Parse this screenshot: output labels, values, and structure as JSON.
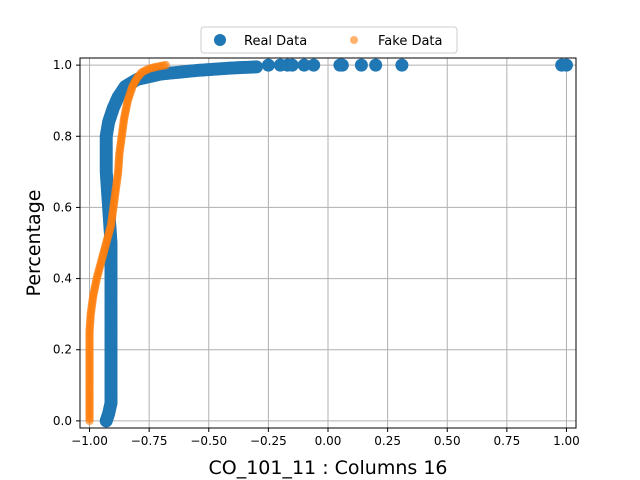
{
  "chart_data": {
    "type": "scatter",
    "title": "",
    "xlabel": "CO_101_11 : Columns 16",
    "ylabel": "Percentage",
    "xlim": [
      -1.04,
      1.04
    ],
    "ylim": [
      -0.02,
      1.02
    ],
    "x_ticks": [
      -1.0,
      -0.75,
      -0.5,
      -0.25,
      0.0,
      0.25,
      0.5,
      0.75,
      1.0
    ],
    "x_tick_labels": [
      "−1.00",
      "−0.75",
      "−0.50",
      "−0.25",
      "0.00",
      "0.25",
      "0.50",
      "0.75",
      "1.00"
    ],
    "y_ticks": [
      0.0,
      0.2,
      0.4,
      0.6,
      0.8,
      1.0
    ],
    "y_tick_labels": [
      "0.0",
      "0.2",
      "0.4",
      "0.6",
      "0.8",
      "1.0"
    ],
    "grid": true,
    "legend_position": "top-center",
    "series": [
      {
        "name": "Real Data",
        "color": "#1f77b4",
        "marker": "large-circle",
        "points": [
          [
            -0.93,
            0.0
          ],
          [
            -0.92,
            0.02
          ],
          [
            -0.91,
            0.05
          ],
          [
            -0.91,
            0.1
          ],
          [
            -0.91,
            0.2
          ],
          [
            -0.91,
            0.3
          ],
          [
            -0.91,
            0.4
          ],
          [
            -0.91,
            0.5
          ],
          [
            -0.92,
            0.6
          ],
          [
            -0.93,
            0.7
          ],
          [
            -0.93,
            0.8
          ],
          [
            -0.92,
            0.84
          ],
          [
            -0.9,
            0.88
          ],
          [
            -0.88,
            0.91
          ],
          [
            -0.85,
            0.94
          ],
          [
            -0.8,
            0.96
          ],
          [
            -0.7,
            0.975
          ],
          [
            -0.55,
            0.985
          ],
          [
            -0.4,
            0.992
          ],
          [
            -0.3,
            0.995
          ],
          [
            -0.25,
            1.0
          ],
          [
            -0.2,
            1.0
          ],
          [
            -0.17,
            1.0
          ],
          [
            -0.15,
            1.0
          ],
          [
            -0.1,
            1.0
          ],
          [
            -0.06,
            1.0
          ],
          [
            0.05,
            1.0
          ],
          [
            0.06,
            1.0
          ],
          [
            0.14,
            1.0
          ],
          [
            0.2,
            1.0
          ],
          [
            0.31,
            1.0
          ],
          [
            0.98,
            1.0
          ],
          [
            1.0,
            1.0
          ]
        ]
      },
      {
        "name": "Fake Data",
        "color": "#ff7f0e",
        "marker": "small-circle",
        "points": [
          [
            -1.0,
            0.0
          ],
          [
            -1.0,
            0.05
          ],
          [
            -1.0,
            0.1
          ],
          [
            -1.0,
            0.15
          ],
          [
            -1.0,
            0.2
          ],
          [
            -1.0,
            0.25
          ],
          [
            -0.995,
            0.3
          ],
          [
            -0.985,
            0.35
          ],
          [
            -0.97,
            0.4
          ],
          [
            -0.95,
            0.45
          ],
          [
            -0.93,
            0.5
          ],
          [
            -0.91,
            0.55
          ],
          [
            -0.9,
            0.6
          ],
          [
            -0.89,
            0.65
          ],
          [
            -0.88,
            0.7
          ],
          [
            -0.875,
            0.75
          ],
          [
            -0.865,
            0.8
          ],
          [
            -0.855,
            0.85
          ],
          [
            -0.84,
            0.9
          ],
          [
            -0.82,
            0.94
          ],
          [
            -0.8,
            0.965
          ],
          [
            -0.78,
            0.98
          ],
          [
            -0.75,
            0.99
          ],
          [
            -0.72,
            0.995
          ],
          [
            -0.68,
            1.0
          ]
        ]
      }
    ]
  }
}
